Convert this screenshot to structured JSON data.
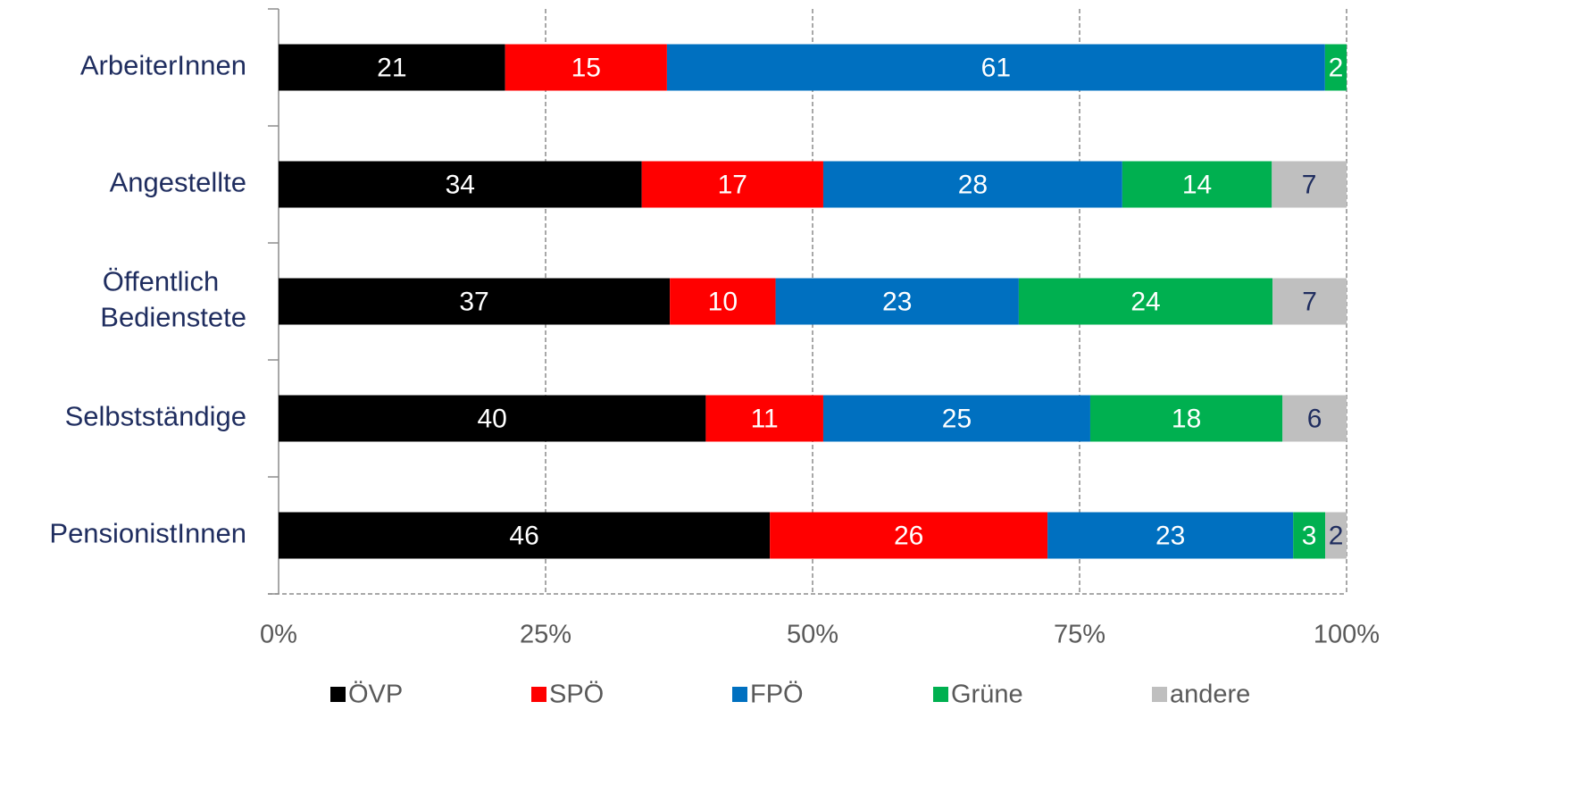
{
  "chart_data": {
    "type": "bar",
    "orientation": "horizontal",
    "stack": "percent",
    "categories": [
      "ArbeiterInnen",
      "Angestellte",
      "Öffentlich\nBedienstete",
      "Selbstständige",
      "PensionistInnen"
    ],
    "series": [
      {
        "name": "ÖVP",
        "color": "#000000",
        "values": [
          21,
          34,
          37,
          40,
          46
        ]
      },
      {
        "name": "SPÖ",
        "color": "#ff0000",
        "values": [
          15,
          17,
          10,
          11,
          26
        ]
      },
      {
        "name": "FPÖ",
        "color": "#0070c0",
        "values": [
          61,
          28,
          23,
          25,
          23
        ]
      },
      {
        "name": "Grüne",
        "color": "#00b050",
        "values": [
          2,
          14,
          24,
          18,
          3
        ]
      },
      {
        "name": "andere",
        "color": "#bfbfbf",
        "values": [
          null,
          7,
          7,
          6,
          2
        ]
      }
    ],
    "xlim": [
      0,
      100
    ],
    "xticks": [
      {
        "value": 0,
        "label": "0%"
      },
      {
        "value": 25,
        "label": "25%"
      },
      {
        "value": 50,
        "label": "50%"
      },
      {
        "value": 75,
        "label": "75%"
      },
      {
        "value": 100,
        "label": "100%"
      }
    ],
    "grid": true,
    "legend": "bottom"
  }
}
